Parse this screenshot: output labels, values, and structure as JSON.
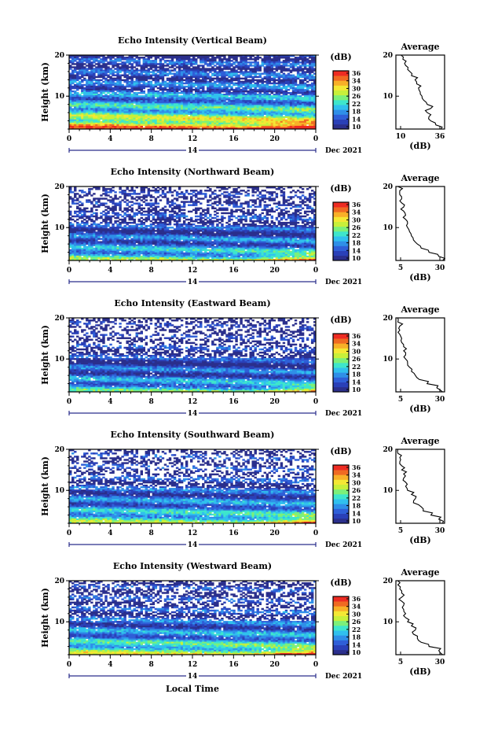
{
  "colors": {
    "colormap": [
      "#2b2f8c",
      "#2a40b8",
      "#2f5fd8",
      "#2f8fe8",
      "#30c0ee",
      "#3ee6cc",
      "#7cf07a",
      "#c8f03a",
      "#f4e834",
      "#f8b028",
      "#f06a22",
      "#ee2c22"
    ],
    "missing": "#ffffff",
    "line": "#000000"
  },
  "date_label": "Dec 2021",
  "date_day": "14",
  "xlabel": "Local Time",
  "ylabel": "Height (km)",
  "colorbar_unit": "(dB)",
  "colorbar_ticks": [
    "36",
    "34",
    "30",
    "26",
    "22",
    "18",
    "14",
    "10"
  ],
  "average_title": "Average",
  "average_xlabel": "(dB)",
  "x_ticks": [
    "0",
    "4",
    "8",
    "12",
    "16",
    "20",
    "0"
  ],
  "y_ticks": [
    "20",
    "10"
  ],
  "chart_data": [
    {
      "type": "heatmap",
      "title": "Echo Intensity (Vertical Beam)",
      "x_range_hours": [
        0,
        24
      ],
      "y_range_km": [
        2,
        20
      ],
      "z_range_db": [
        10,
        38
      ],
      "features": {
        "base_db": 12,
        "missing_level": 0.12,
        "surface_boost": 22,
        "late_boost": 14
      },
      "profile": {
        "type": "line",
        "title": "Average",
        "xlabel": "(dB)",
        "xlim": [
          10,
          38
        ],
        "xticks": [
          "10",
          "36"
        ],
        "ylim": [
          2,
          20
        ],
        "yticks": [
          "20",
          "10"
        ],
        "heights_km": [
          2,
          3,
          4,
          5,
          6,
          7,
          8,
          9,
          10,
          11,
          12,
          13,
          14,
          15,
          16,
          17,
          18,
          19,
          20
        ],
        "values_db": [
          36,
          33,
          30,
          29,
          28,
          30,
          28,
          26,
          25,
          24,
          23,
          22,
          21,
          19,
          18,
          17,
          15,
          14,
          13
        ]
      }
    },
    {
      "type": "heatmap",
      "title": "Echo Intensity (Northward Beam)",
      "x_range_hours": [
        0,
        24
      ],
      "y_range_km": [
        2,
        20
      ],
      "z_range_db": [
        10,
        38
      ],
      "features": {
        "base_db": 10,
        "missing_level": 0.35,
        "surface_boost": 14,
        "late_boost": 14
      },
      "profile": {
        "type": "line",
        "title": "Average",
        "xlabel": "(dB)",
        "xlim": [
          5,
          30
        ],
        "xticks": [
          "5",
          "30"
        ],
        "ylim": [
          2,
          20
        ],
        "yticks": [
          "20",
          "10"
        ],
        "heights_km": [
          2,
          3,
          4,
          5,
          6,
          7,
          8,
          9,
          10,
          11,
          12,
          13,
          14,
          15,
          16,
          17,
          18,
          19,
          20
        ],
        "values_db": [
          29,
          27,
          22,
          18,
          16,
          14,
          13,
          12,
          11,
          11,
          10,
          10,
          9,
          9,
          8,
          8,
          7,
          7,
          6
        ]
      }
    },
    {
      "type": "heatmap",
      "title": "Echo Intensity (Eastward Beam)",
      "x_range_hours": [
        0,
        24
      ],
      "y_range_km": [
        2,
        20
      ],
      "z_range_db": [
        10,
        38
      ],
      "features": {
        "base_db": 10,
        "missing_level": 0.4,
        "surface_boost": 12,
        "late_boost": 14
      },
      "profile": {
        "type": "line",
        "title": "Average",
        "xlabel": "(dB)",
        "xlim": [
          5,
          30
        ],
        "xticks": [
          "5",
          "30"
        ],
        "ylim": [
          2,
          20
        ],
        "yticks": [
          "20",
          "10"
        ],
        "heights_km": [
          2,
          3,
          4,
          5,
          6,
          7,
          8,
          9,
          10,
          11,
          12,
          13,
          14,
          15,
          16,
          17,
          18,
          19,
          20
        ],
        "values_db": [
          29,
          26,
          21,
          17,
          15,
          13,
          12,
          11,
          10,
          10,
          9,
          9,
          8,
          8,
          7,
          7,
          7,
          6,
          6
        ]
      }
    },
    {
      "type": "heatmap",
      "title": "Echo Intensity (Southward Beam)",
      "x_range_hours": [
        0,
        24
      ],
      "y_range_km": [
        2,
        20
      ],
      "z_range_db": [
        10,
        38
      ],
      "features": {
        "base_db": 11,
        "missing_level": 0.38,
        "surface_boost": 14,
        "late_boost": 14
      },
      "profile": {
        "type": "line",
        "title": "Average",
        "xlabel": "(dB)",
        "xlim": [
          5,
          30
        ],
        "xticks": [
          "5",
          "30"
        ],
        "ylim": [
          2,
          20
        ],
        "yticks": [
          "20",
          "10"
        ],
        "heights_km": [
          2,
          3,
          4,
          5,
          6,
          7,
          8,
          9,
          10,
          11,
          12,
          13,
          14,
          15,
          16,
          17,
          18,
          19,
          20
        ],
        "values_db": [
          29,
          27,
          23,
          19,
          18,
          14,
          15,
          13,
          11,
          10,
          10,
          9,
          9,
          8,
          8,
          7,
          7,
          6,
          6
        ]
      }
    },
    {
      "type": "heatmap",
      "title": "Echo Intensity (Westward Beam)",
      "x_range_hours": [
        0,
        24
      ],
      "y_range_km": [
        2,
        20
      ],
      "z_range_db": [
        10,
        38
      ],
      "features": {
        "base_db": 11,
        "missing_level": 0.33,
        "surface_boost": 16,
        "late_boost": 14
      },
      "profile": {
        "type": "line",
        "title": "Average",
        "xlabel": "(dB)",
        "xlim": [
          5,
          30
        ],
        "xticks": [
          "5",
          "30"
        ],
        "ylim": [
          2,
          20
        ],
        "yticks": [
          "20",
          "10"
        ],
        "heights_km": [
          2,
          3,
          4,
          5,
          6,
          7,
          8,
          9,
          10,
          11,
          12,
          13,
          14,
          15,
          16,
          17,
          18,
          19,
          20
        ],
        "values_db": [
          29,
          27,
          22,
          18,
          16,
          14,
          15,
          13,
          11,
          10,
          10,
          9,
          9,
          8,
          8,
          8,
          7,
          6,
          6
        ]
      }
    }
  ]
}
